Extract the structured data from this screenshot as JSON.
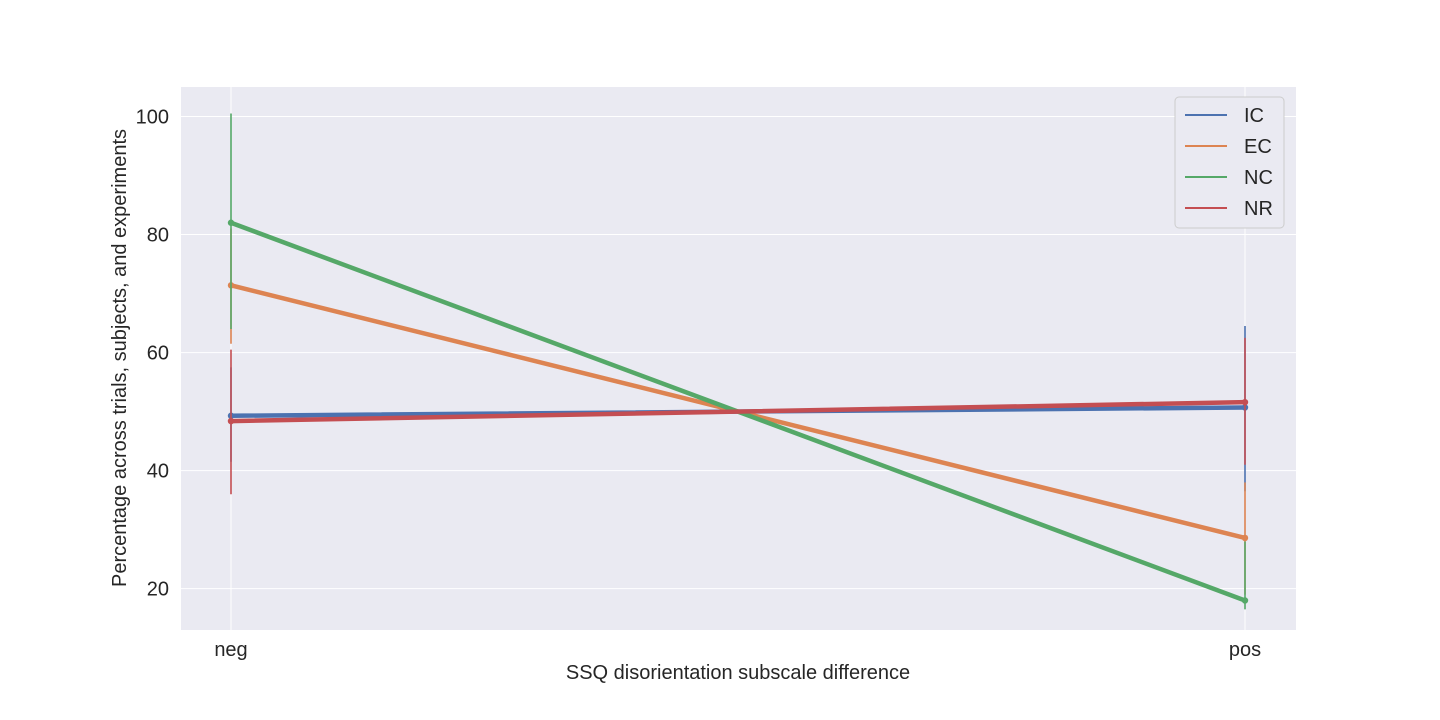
{
  "chart_data": {
    "type": "line",
    "title": "",
    "xlabel": "SSQ disorientation subscale difference",
    "ylabel": "Percentage across trials, subjects, and experiments",
    "categories": [
      "neg",
      "pos"
    ],
    "ylim": [
      13,
      105
    ],
    "yticks": [
      20,
      40,
      60,
      80,
      100
    ],
    "grid": true,
    "legend_position": "top-right",
    "series": [
      {
        "name": "IC",
        "color": "#4c72b0",
        "values": [
          49.3,
          50.7
        ],
        "err_low": [
          41.5,
          36.5
        ],
        "err_high": [
          57.5,
          64.5
        ]
      },
      {
        "name": "EC",
        "color": "#dd8452",
        "values": [
          71.4,
          28.6
        ],
        "err_low": [
          61.5,
          19.0
        ],
        "err_high": [
          81.0,
          38.0
        ]
      },
      {
        "name": "NC",
        "color": "#55a868",
        "values": [
          82.0,
          18.0
        ],
        "err_low": [
          64.0,
          16.5
        ],
        "err_high": [
          100.5,
          28.0
        ]
      },
      {
        "name": "NR",
        "color": "#c44e52",
        "values": [
          48.4,
          51.6
        ],
        "err_low": [
          36.0,
          41.0
        ],
        "err_high": [
          60.5,
          62.5
        ]
      }
    ]
  }
}
